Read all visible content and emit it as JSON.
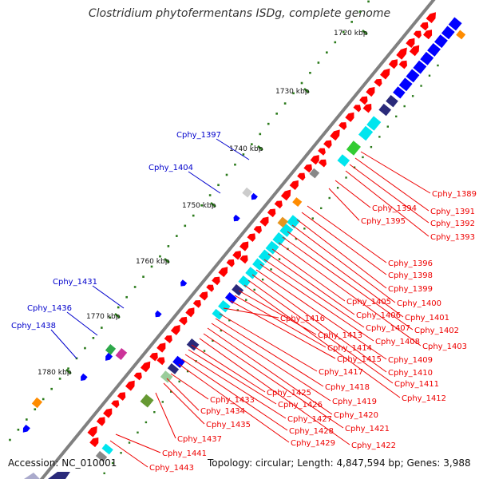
{
  "title": "Clostridium phytofermentans ISDg, complete genome",
  "footer": {
    "accession": "Accession: NC_010001",
    "summary": "Topology: circular; Length: 4,847,594 bp; Genes: 3,988"
  },
  "colors": {
    "backbone": "#808080",
    "forward_label": "#0000cc",
    "reverse_label": "#ee0000",
    "cds": "#ff0000",
    "tick": "#2a7a1a",
    "rna": "#ff8c00",
    "cog_cyan": "#00e5ee",
    "cog_blue": "#0000ff",
    "cog_navy": "#2a2a7a",
    "cog_green": "#33cc33"
  },
  "scale_labels": [
    "1720 kbp",
    "1730 kbp",
    "1740 kbp",
    "1750 kbp",
    "1760 kbp",
    "1770 kbp",
    "1780 kbp"
  ],
  "forward_genes": [
    "Cphy_1397",
    "Cphy_1404",
    "Cphy_1431",
    "Cphy_1436",
    "Cphy_1438"
  ],
  "reverse_genes": [
    "Cphy_1389",
    "Cphy_1391",
    "Cphy_1392",
    "Cphy_1393",
    "Cphy_1394",
    "Cphy_1395",
    "Cphy_1396",
    "Cphy_1398",
    "Cphy_1399",
    "Cphy_1400",
    "Cphy_1401",
    "Cphy_1402",
    "Cphy_1403",
    "Cphy_1405",
    "Cphy_1406",
    "Cphy_1407",
    "Cphy_1408",
    "Cphy_1409",
    "Cphy_1410",
    "Cphy_1411",
    "Cphy_1412",
    "Cphy_1413",
    "Cphy_1414",
    "Cphy_1415",
    "Cphy_1416",
    "Cphy_1417",
    "Cphy_1418",
    "Cphy_1419",
    "Cphy_1420",
    "Cphy_1421",
    "Cphy_1422",
    "Cphy_1425",
    "Cphy_1426",
    "Cphy_1427",
    "Cphy_1428",
    "Cphy_1429",
    "Cphy_1433",
    "Cphy_1434",
    "Cphy_1435",
    "Cphy_1437",
    "Cphy_1441",
    "Cphy_1443"
  ]
}
